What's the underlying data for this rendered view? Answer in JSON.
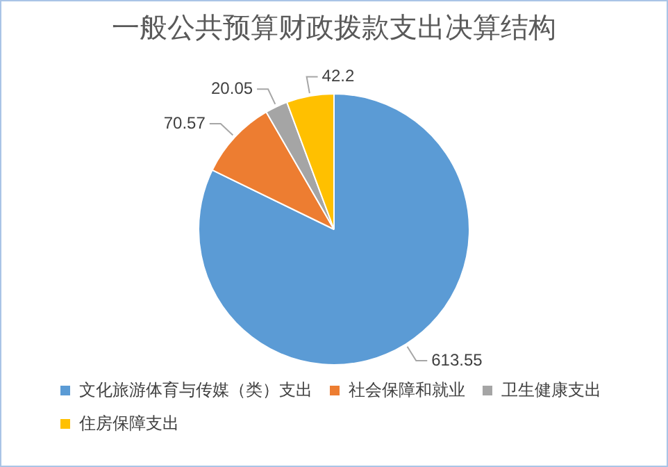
{
  "chart_data": {
    "type": "pie",
    "title": "一般公共预算财政拨款支出决算结构",
    "categories": [
      "文化旅游体育与传媒（类）支出",
      "社会保障和就业",
      "卫生健康支出",
      "住房保障支出"
    ],
    "values": [
      613.55,
      70.57,
      20.05,
      42.2
    ],
    "colors": [
      "#5b9bd5",
      "#ed7d31",
      "#a5a5a5",
      "#ffc000"
    ],
    "data_labels": true,
    "legend": "bottom"
  }
}
